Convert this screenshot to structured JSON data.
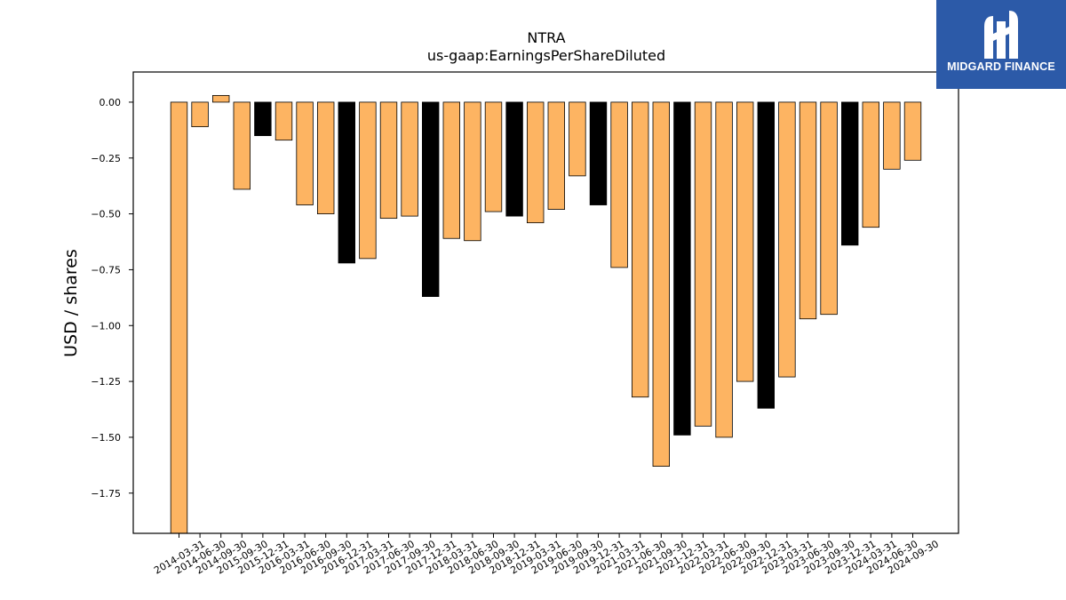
{
  "brand": {
    "name": "MIDGARD FINANCE",
    "icon": "midgard-m-icon",
    "color": "#2c5aa8"
  },
  "chart_data": {
    "type": "bar",
    "title": "NTRA",
    "subtitle": "us-gaap:EarningsPerShareDiluted",
    "xlabel": "",
    "ylabel": "USD / shares",
    "ylim": [
      -1.93,
      0.135
    ],
    "yticks": [
      0.0,
      -0.25,
      -0.5,
      -0.75,
      -1.0,
      -1.25,
      -1.5,
      -1.75
    ],
    "ytick_labels": [
      "0.00",
      "−0.25",
      "−0.50",
      "−0.75",
      "−1.00",
      "−1.25",
      "−1.50",
      "−1.75"
    ],
    "grid": false,
    "legend": "none",
    "colors": {
      "default": "#fdb462",
      "q4": "#000000",
      "edge": "#000000"
    },
    "categories": [
      "2014-03-31",
      "2014-06-30",
      "2014-09-30",
      "2015-09-30",
      "2015-12-31",
      "2016-03-31",
      "2016-06-30",
      "2016-09-30",
      "2016-12-31",
      "2017-03-31",
      "2017-06-30",
      "2017-09-30",
      "2017-12-31",
      "2018-03-31",
      "2018-06-30",
      "2018-09-30",
      "2018-12-31",
      "2019-03-31",
      "2019-06-30",
      "2019-09-30",
      "2019-12-31",
      "2021-03-31",
      "2021-06-30",
      "2021-09-30",
      "2021-12-31",
      "2022-03-31",
      "2022-06-30",
      "2022-09-30",
      "2022-12-31",
      "2023-03-31",
      "2023-06-30",
      "2023-09-30",
      "2023-12-31",
      "2024-03-31",
      "2024-06-30",
      "2024-09-30"
    ],
    "values": [
      -1.93,
      -0.11,
      0.03,
      -0.39,
      -0.15,
      -0.17,
      -0.46,
      -0.5,
      -0.72,
      -0.7,
      -0.52,
      -0.51,
      -0.87,
      -0.61,
      -0.62,
      -0.49,
      -0.51,
      -0.54,
      -0.48,
      -0.33,
      -0.46,
      -0.74,
      -1.32,
      -1.63,
      -1.49,
      -1.45,
      -1.5,
      -1.25,
      -1.37,
      -1.23,
      -0.97,
      -0.95,
      -0.64,
      -0.56,
      -0.3,
      -0.26
    ],
    "highlight": [
      false,
      false,
      false,
      false,
      true,
      false,
      false,
      false,
      true,
      false,
      false,
      false,
      true,
      false,
      false,
      false,
      true,
      false,
      false,
      false,
      true,
      false,
      false,
      false,
      true,
      false,
      false,
      false,
      true,
      false,
      false,
      false,
      true,
      false,
      false,
      false
    ]
  }
}
